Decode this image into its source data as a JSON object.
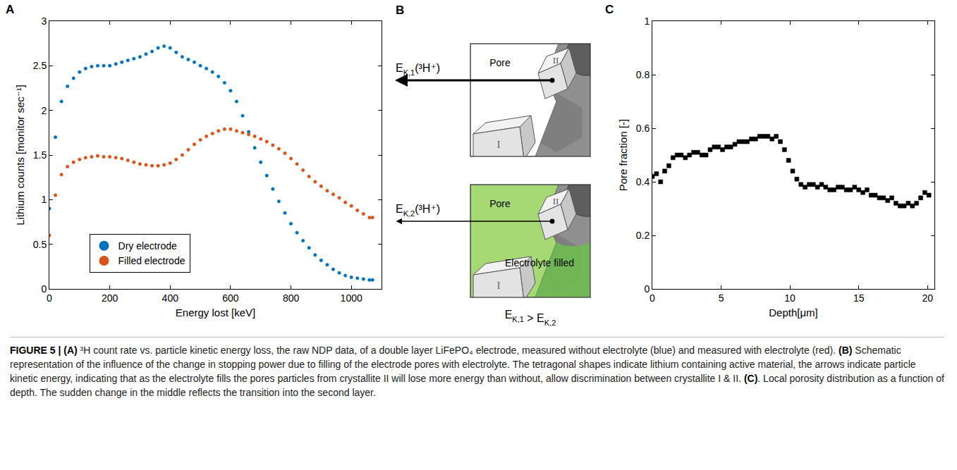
{
  "chart_data": [
    {
      "type": "scatter",
      "panel": "A",
      "x_label": "Energy lost [keV]",
      "y_label": "Lithium counts [monitor sec⁻¹]",
      "x": [
        0,
        20,
        40,
        60,
        80,
        100,
        120,
        140,
        160,
        180,
        200,
        220,
        240,
        260,
        280,
        300,
        320,
        340,
        360,
        380,
        400,
        420,
        440,
        460,
        480,
        500,
        520,
        540,
        560,
        580,
        600,
        620,
        640,
        660,
        680,
        700,
        720,
        740,
        760,
        780,
        800,
        820,
        840,
        860,
        880,
        900,
        920,
        940,
        960,
        980,
        1000,
        1020,
        1040,
        1060,
        1070
      ],
      "series": [
        {
          "name": "Dry electrode",
          "color": "#0072BD",
          "marker": "circle",
          "values": [
            0.9,
            1.7,
            2.1,
            2.27,
            2.36,
            2.43,
            2.47,
            2.49,
            2.5,
            2.5,
            2.5,
            2.52,
            2.54,
            2.56,
            2.58,
            2.6,
            2.63,
            2.66,
            2.7,
            2.72,
            2.7,
            2.65,
            2.6,
            2.57,
            2.54,
            2.5,
            2.47,
            2.43,
            2.38,
            2.31,
            2.22,
            2.1,
            1.94,
            1.76,
            1.58,
            1.42,
            1.27,
            1.12,
            0.98,
            0.85,
            0.73,
            0.63,
            0.54,
            0.46,
            0.38,
            0.32,
            0.27,
            0.22,
            0.18,
            0.15,
            0.13,
            0.12,
            0.11,
            0.1,
            0.1
          ]
        },
        {
          "name": "Filled electrode",
          "color": "#D95319",
          "marker": "circle",
          "values": [
            0.6,
            1.05,
            1.28,
            1.37,
            1.42,
            1.45,
            1.47,
            1.48,
            1.49,
            1.48,
            1.48,
            1.47,
            1.46,
            1.44,
            1.42,
            1.4,
            1.39,
            1.38,
            1.38,
            1.39,
            1.41,
            1.45,
            1.5,
            1.56,
            1.62,
            1.67,
            1.71,
            1.74,
            1.77,
            1.79,
            1.79,
            1.77,
            1.75,
            1.73,
            1.71,
            1.68,
            1.65,
            1.61,
            1.57,
            1.52,
            1.46,
            1.4,
            1.33,
            1.26,
            1.2,
            1.15,
            1.1,
            1.06,
            1.02,
            0.97,
            0.93,
            0.88,
            0.84,
            0.8,
            0.8
          ]
        }
      ],
      "xlim": [
        0,
        1100
      ],
      "xticks": [
        0,
        200,
        400,
        600,
        800,
        1000
      ],
      "ylim": [
        0,
        3
      ],
      "yticks": [
        0,
        0.5,
        1,
        1.5,
        2,
        2.5,
        3
      ],
      "grid": false,
      "legend": "bottom left"
    },
    {
      "type": "scatter",
      "panel": "C",
      "x_label": "Depth[μm]",
      "y_label": "Pore fraction [-]",
      "x": [
        0,
        0.3,
        0.6,
        0.9,
        1.2,
        1.5,
        1.8,
        2.1,
        2.4,
        2.7,
        3,
        3.3,
        3.6,
        3.9,
        4.2,
        4.5,
        4.8,
        5.1,
        5.4,
        5.7,
        6,
        6.3,
        6.6,
        6.9,
        7.2,
        7.5,
        7.8,
        8.1,
        8.4,
        8.7,
        9,
        9.3,
        9.6,
        9.9,
        10.2,
        10.5,
        10.8,
        11.1,
        11.4,
        11.7,
        12,
        12.3,
        12.6,
        12.9,
        13.2,
        13.5,
        13.8,
        14.1,
        14.4,
        14.7,
        15,
        15.3,
        15.6,
        15.9,
        16.2,
        16.5,
        16.8,
        17.1,
        17.4,
        17.7,
        18,
        18.3,
        18.6,
        18.9,
        19.2,
        19.5,
        19.8,
        20.1
      ],
      "values": [
        0.42,
        0.43,
        0.4,
        0.44,
        0.46,
        0.49,
        0.5,
        0.5,
        0.49,
        0.5,
        0.51,
        0.51,
        0.5,
        0.5,
        0.52,
        0.53,
        0.53,
        0.52,
        0.53,
        0.53,
        0.54,
        0.55,
        0.55,
        0.55,
        0.56,
        0.56,
        0.57,
        0.57,
        0.57,
        0.56,
        0.57,
        0.55,
        0.52,
        0.48,
        0.44,
        0.41,
        0.39,
        0.38,
        0.39,
        0.39,
        0.38,
        0.39,
        0.38,
        0.37,
        0.37,
        0.38,
        0.38,
        0.37,
        0.37,
        0.38,
        0.37,
        0.36,
        0.37,
        0.35,
        0.35,
        0.34,
        0.34,
        0.33,
        0.34,
        0.32,
        0.31,
        0.31,
        0.32,
        0.31,
        0.32,
        0.34,
        0.36,
        0.35
      ],
      "color": "#000000",
      "marker": "square",
      "xlim": [
        0,
        20.5
      ],
      "xticks": [
        0,
        5,
        10,
        15,
        20
      ],
      "ylim": [
        0,
        1
      ],
      "yticks": [
        0,
        0.2,
        0.4,
        0.6,
        0.8,
        1
      ],
      "grid": false
    }
  ],
  "diagram": {
    "panel": "B",
    "upper": {
      "energy": {
        "symbol": "E",
        "subscript": "K,1",
        "argument": "(³H⁺)"
      },
      "labels": {
        "pore": "Pore",
        "crystallite_1": "I",
        "crystallite_2": "II"
      }
    },
    "lower": {
      "energy": {
        "symbol": "E",
        "subscript": "K,2",
        "argument": "(³H⁺)"
      },
      "labels": {
        "pore": "Pore",
        "filled": "Electrolyte filled",
        "crystallite_1": "I",
        "crystallite_2": "II"
      }
    },
    "relation": {
      "left": {
        "symbol": "E",
        "subscript": "K,1"
      },
      "operator": ">",
      "right": {
        "symbol": "E",
        "subscript": "K,2"
      }
    }
  },
  "caption": [
    {
      "text": "FIGURE 5 | (A)",
      "bold": true
    },
    {
      "text": " ³H count rate vs. particle kinetic energy loss, the raw NDP data, of a double layer LiFePO₄ electrode, measured without electrolyte (blue) and measured with electrolyte (red). ",
      "bold": false
    },
    {
      "text": "(B)",
      "bold": true
    },
    {
      "text": " Schematic representation of the influence of the change in stopping power due to filling of the electrode pores with electrolyte. The tetragonal shapes indicate lithium containing active material, the arrows indicate particle kinetic energy, indicating that as the electrolyte fills the pores particles from crystallite II will lose more energy than without, allow discrimination between crystallite I & II. ",
      "bold": false
    },
    {
      "text": "(C)",
      "bold": true
    },
    {
      "text": ". Local porosity distribution as a function of depth. The sudden change in the middle reflects the transition into the second layer.",
      "bold": false
    }
  ]
}
